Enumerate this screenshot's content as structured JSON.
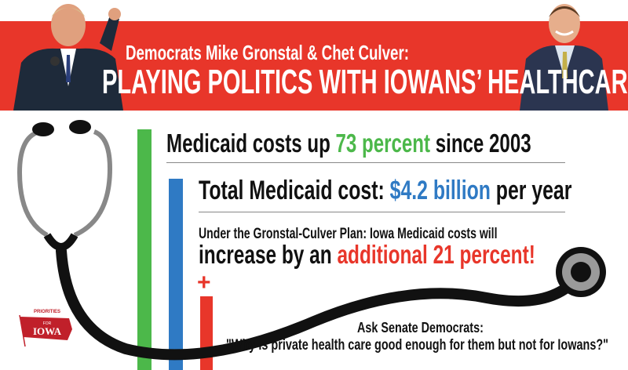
{
  "header": {
    "line1": "Democrats Mike Gronstal & Chet Culver:",
    "line2": "PLAYING POLITICS WITH IOWANS’ HEALTHCARE"
  },
  "stats": [
    {
      "pre": "Medicaid costs up ",
      "highlight": "73 percent",
      "post": " since 2003"
    },
    {
      "pre": "Total Medicaid cost: ",
      "highlight": "$4.2 billion",
      "post": " per year"
    }
  ],
  "plan": {
    "intro": "Under the Gronstal-Culver Plan: Iowa Medicaid costs will",
    "pre": "increase by an ",
    "highlight": "additional 21 percent!"
  },
  "plus_sign": "+",
  "ask": {
    "heading": "Ask Senate Democrats:",
    "quote": "\"Why is private health care good enough for them but not for Iowans?\""
  },
  "logo": {
    "top": "PRIORITIES",
    "mid": "FOR",
    "main": "IOWA"
  },
  "colors": {
    "red": "#e8362a",
    "green": "#4cb84a",
    "blue": "#2f7ac4"
  }
}
